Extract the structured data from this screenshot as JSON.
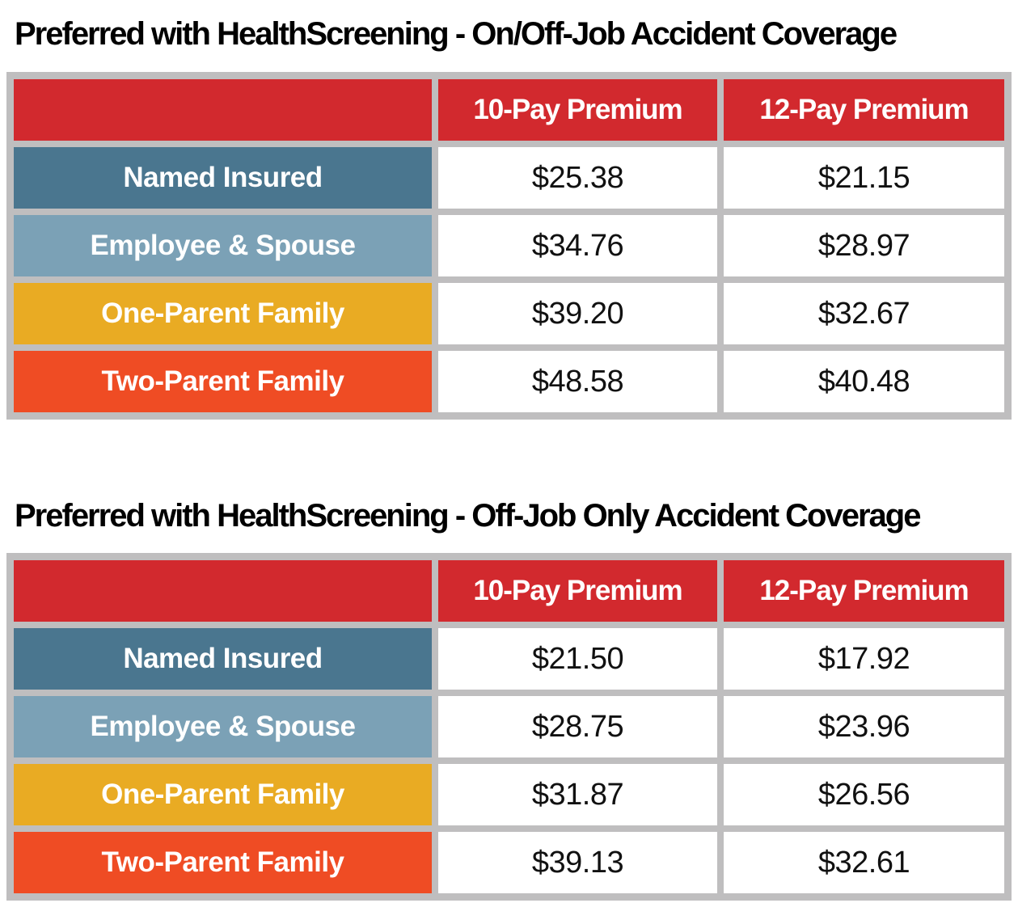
{
  "colors": {
    "header_red": "#D2292E",
    "row_dark_blue": "#4A768F",
    "row_light_blue": "#7BA1B6",
    "row_gold": "#E9AB23",
    "row_orange": "#EF4C24",
    "table_border_gray": "#BFBEBF",
    "title_text": "#000000",
    "value_text": "#111111"
  },
  "tables": [
    {
      "title": "Preferred with HealthScreening - On/Off-Job Accident Coverage",
      "columns": [
        "",
        "10-Pay Premium",
        "12-Pay Premium"
      ],
      "rows": [
        {
          "label": "Named Insured",
          "values": [
            "$25.38",
            "$21.15"
          ]
        },
        {
          "label": "Employee & Spouse",
          "values": [
            "$34.76",
            "$28.97"
          ]
        },
        {
          "label": "One-Parent Family",
          "values": [
            "$39.20",
            "$32.67"
          ]
        },
        {
          "label": "Two-Parent Family",
          "values": [
            "$48.58",
            "$40.48"
          ]
        }
      ]
    },
    {
      "title": "Preferred with HealthScreening - Off-Job Only Accident Coverage",
      "columns": [
        "",
        "10-Pay Premium",
        "12-Pay Premium"
      ],
      "rows": [
        {
          "label": "Named Insured",
          "values": [
            "$21.50",
            "$17.92"
          ]
        },
        {
          "label": "Employee & Spouse",
          "values": [
            "$28.75",
            "$23.96"
          ]
        },
        {
          "label": "One-Parent Family",
          "values": [
            "$31.87",
            "$26.56"
          ]
        },
        {
          "label": "Two-Parent Family",
          "values": [
            "$39.13",
            "$32.61"
          ]
        }
      ]
    }
  ]
}
